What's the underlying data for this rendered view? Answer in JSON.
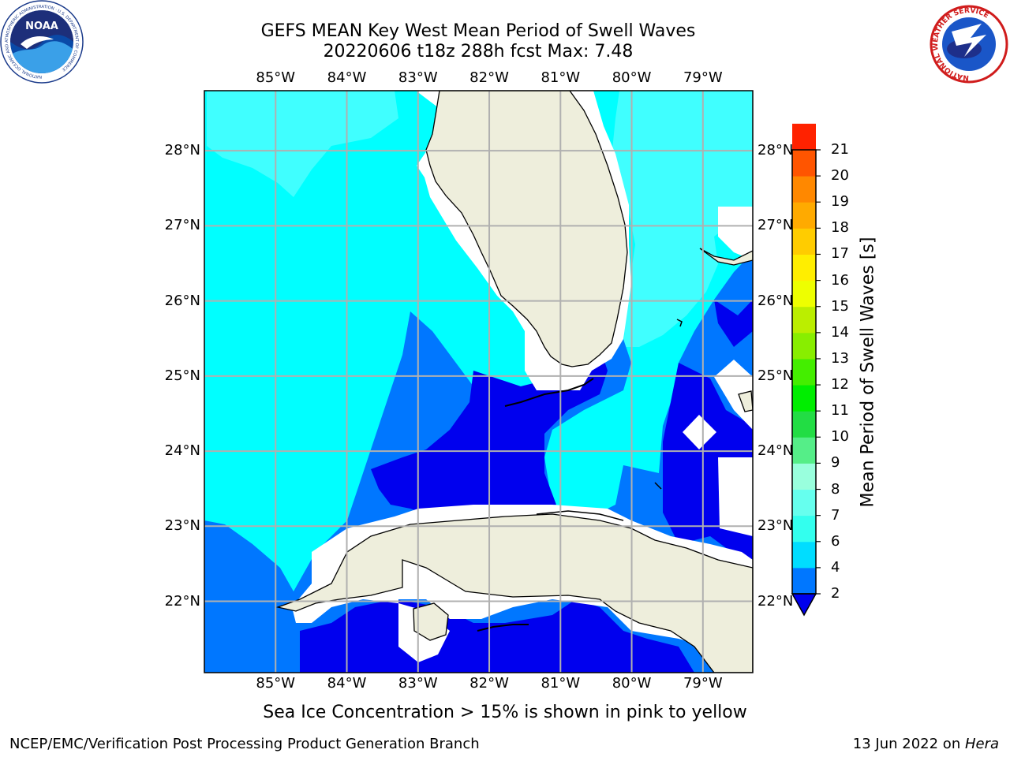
{
  "title": {
    "line1": "GEFS MEAN Key West Mean Period of Swell Waves",
    "line2": "20220606 t18z 288h fcst   Max: 7.48"
  },
  "map": {
    "lon_ticks": [
      "85°W",
      "84°W",
      "83°W",
      "82°W",
      "81°W",
      "80°W",
      "79°W"
    ],
    "lon_values": [
      -85,
      -84,
      -83,
      -82,
      -81,
      -80,
      -79
    ],
    "lat_ticks": [
      "28°N",
      "27°N",
      "26°N",
      "25°N",
      "24°N",
      "23°N",
      "22°N"
    ],
    "lat_values": [
      28,
      27,
      26,
      25,
      24,
      23,
      22
    ],
    "lon_range": [
      -86,
      -78.3
    ],
    "lat_range": [
      21.05,
      28.8
    ],
    "land_color": "#eeeedc",
    "coastline_color": "#000000",
    "grid_color": "#b0b0b0"
  },
  "colorbar": {
    "label": "Mean Period of Swell Waves [s]",
    "levels": [
      "2",
      "4",
      "6",
      "7",
      "8",
      "9",
      "10",
      "11",
      "12",
      "13",
      "14",
      "15",
      "16",
      "17",
      "18",
      "19",
      "20",
      "21"
    ],
    "colors": [
      "#0077ff",
      "#00ddff",
      "#33ffee",
      "#66ffee",
      "#99ffdd",
      "#55ee88",
      "#22dd44",
      "#00ee00",
      "#44ee00",
      "#88ee00",
      "#bbee00",
      "#eeff00",
      "#ffee00",
      "#ffcc00",
      "#ffaa00",
      "#ff8800",
      "#ff5500",
      "#ff2200"
    ],
    "under_color": "#0000ee"
  },
  "note": "Sea Ice Concentration > 15% is shown in pink to yellow",
  "footer": {
    "left": "NCEP/EMC/Verification Post Processing Product Generation Branch",
    "right_prefix": "13 Jun 2022 on ",
    "right_host": "Hera"
  },
  "logos": {
    "noaa": "NOAA",
    "noaa_ring": "NATIONAL OCEANIC AND ATMOSPHERIC ADMINISTRATION · U.S. DEPARTMENT OF COMMERCE",
    "nws_ring": "NATIONAL WEATHER SERVICE"
  }
}
